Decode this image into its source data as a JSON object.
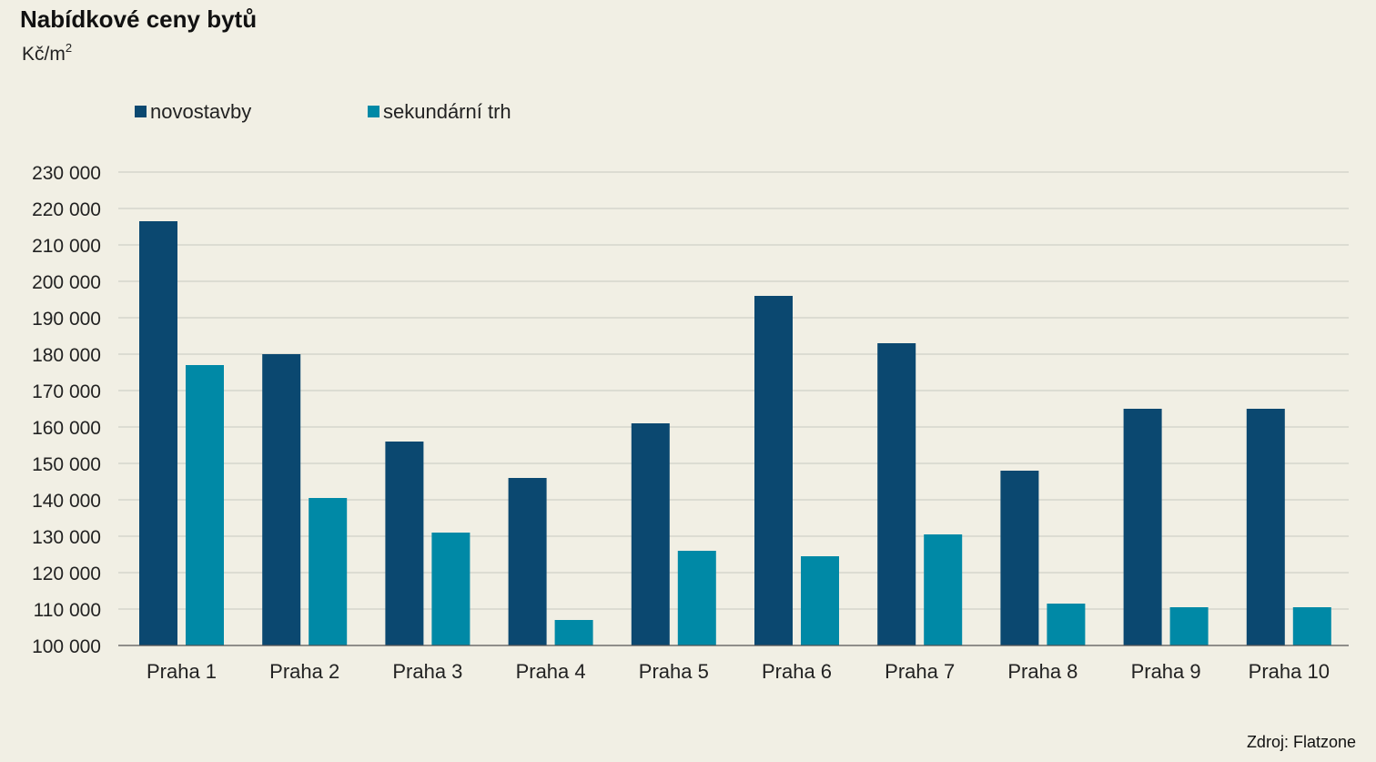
{
  "header": {
    "title": "Nabídkové ceny bytů",
    "unit_base": "Kč/m",
    "unit_exp": "2"
  },
  "legend": {
    "items": [
      {
        "label": "novostavby",
        "color": "#0b4870"
      },
      {
        "label": "sekundární trh",
        "color": "#0089a6"
      }
    ]
  },
  "footer": {
    "source": "Zdroj: Flatzone"
  },
  "chart_data": {
    "type": "bar",
    "title": "Nabídkové ceny bytů",
    "ylabel": "Kč/m2",
    "xlabel": "",
    "categories": [
      "Praha 1",
      "Praha 2",
      "Praha 3",
      "Praha 4",
      "Praha 5",
      "Praha 6",
      "Praha 7",
      "Praha 8",
      "Praha 9",
      "Praha 10"
    ],
    "series": [
      {
        "name": "novostavby",
        "color": "#0b4870",
        "values": [
          216500,
          180000,
          156000,
          146000,
          161000,
          196000,
          183000,
          148000,
          165000,
          165000
        ]
      },
      {
        "name": "sekundární trh",
        "color": "#0089a6",
        "values": [
          177000,
          140500,
          131000,
          107000,
          126000,
          124500,
          130500,
          111500,
          110500,
          110500
        ]
      }
    ],
    "ylim": [
      100000,
      230000
    ],
    "yticks": [
      "100 000",
      "110 000",
      "120 000",
      "130 000",
      "140 000",
      "150 000",
      "160 000",
      "170 000",
      "180 000",
      "190 000",
      "200 000",
      "210 000",
      "220 000",
      "230 000"
    ],
    "grid": true,
    "legend_position": "top-left"
  }
}
